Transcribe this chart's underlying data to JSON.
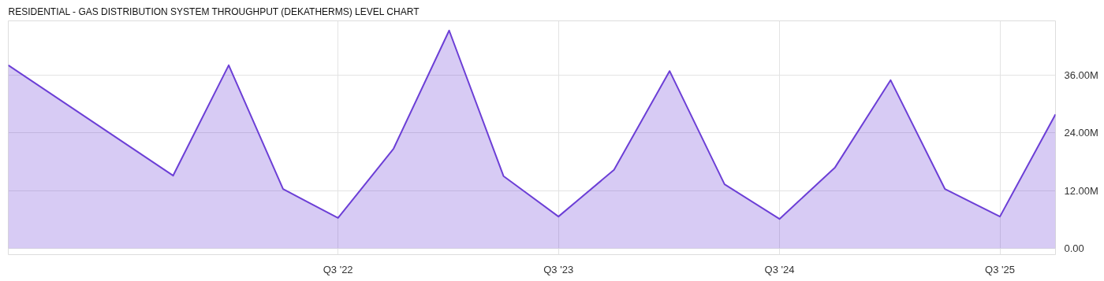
{
  "chart_data": {
    "type": "area",
    "title": "RESIDENTIAL - GAS DISTRIBUTION SYSTEM THROUGHPUT (DEKATHERMS) LEVEL CHART",
    "x": [
      "2021-01-01",
      "2021-10-01",
      "2022-01-01",
      "2022-04-01",
      "2022-07-01",
      "2022-10-01",
      "2023-01-01",
      "2023-04-01",
      "2023-07-01",
      "2023-10-01",
      "2024-01-01",
      "2024-04-01",
      "2024-07-01",
      "2024-10-01",
      "2025-01-01",
      "2025-04-01",
      "2025-07-01",
      "2025-10-01"
    ],
    "series": [
      {
        "color": "#6c3fd6",
        "values": [
          38.0,
          15.1,
          38.0,
          12.3,
          6.3,
          20.7,
          45.2,
          15.0,
          6.6,
          16.3,
          36.8,
          13.3,
          6.1,
          16.8,
          34.9,
          12.3,
          6.6,
          27.8
        ]
      }
    ],
    "xlim": [
      "2021-01-01",
      "2025-10-01"
    ],
    "ylim": [
      -1.3,
      47.2
    ],
    "xticks": [
      {
        "value": "2022-07-01",
        "label": "Q3 '22"
      },
      {
        "value": "2023-07-01",
        "label": "Q3 '23"
      },
      {
        "value": "2024-07-01",
        "label": "Q3 '24"
      },
      {
        "value": "2025-07-01",
        "label": "Q3 '25"
      }
    ],
    "yticks": [
      {
        "value": 0,
        "label": "0.00"
      },
      {
        "value": 12,
        "label": "12.00M"
      },
      {
        "value": 24,
        "label": "24.00M"
      },
      {
        "value": 36,
        "label": "36.00M"
      }
    ],
    "grid": true
  }
}
